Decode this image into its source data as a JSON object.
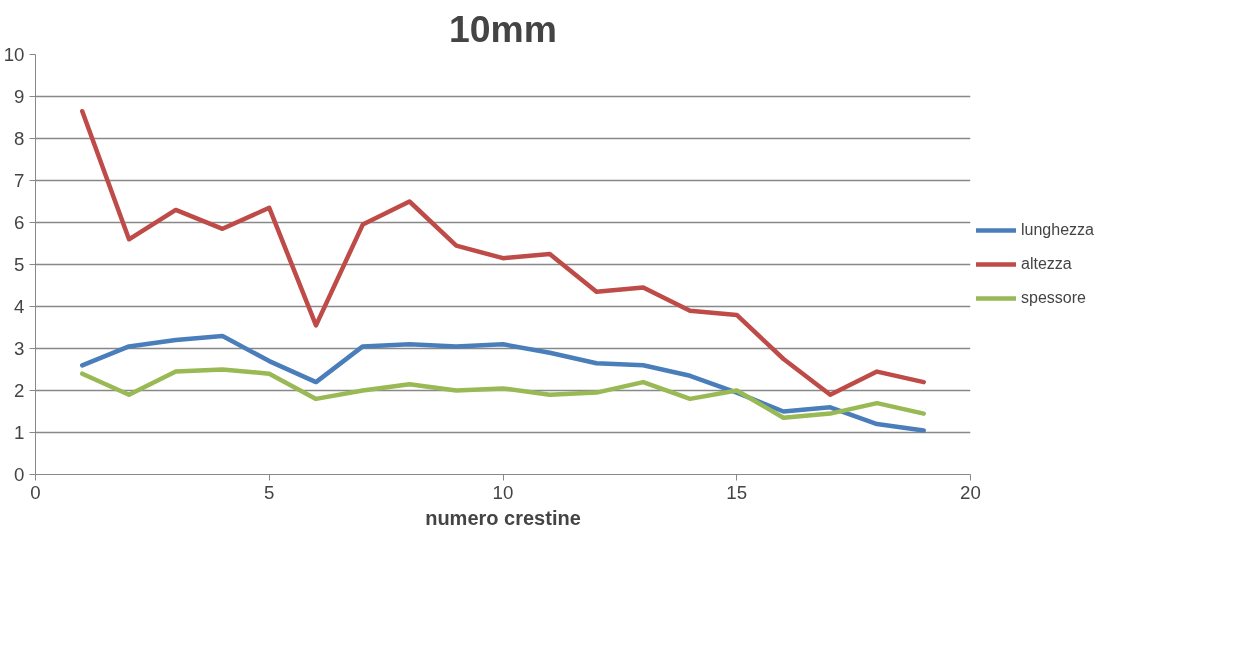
{
  "chart_data": {
    "type": "line",
    "title": "10mm",
    "xlabel": "numero crestine",
    "x": [
      1,
      2,
      3,
      4,
      5,
      6,
      7,
      8,
      9,
      10,
      11,
      12,
      13,
      14,
      15,
      16,
      17,
      18,
      19
    ],
    "series": [
      {
        "name": "lunghezza",
        "color": "#4a7ebb",
        "values": [
          2.6,
          3.05,
          3.2,
          3.3,
          2.7,
          2.2,
          3.05,
          3.1,
          3.05,
          3.1,
          2.9,
          2.65,
          2.6,
          2.35,
          1.95,
          1.5,
          1.6,
          1.2,
          1.05
        ]
      },
      {
        "name": "altezza",
        "color": "#be4b48",
        "values": [
          8.65,
          5.6,
          6.3,
          5.85,
          6.35,
          3.55,
          5.95,
          6.5,
          5.45,
          5.15,
          5.25,
          4.35,
          4.45,
          3.9,
          3.8,
          2.75,
          1.9,
          2.45,
          2.2
        ]
      },
      {
        "name": "spessore",
        "color": "#98b954",
        "values": [
          2.4,
          1.9,
          2.45,
          2.5,
          2.4,
          1.8,
          2.0,
          2.15,
          2.0,
          2.05,
          1.9,
          1.95,
          2.2,
          1.8,
          2.0,
          1.35,
          1.45,
          1.7,
          1.45
        ]
      }
    ],
    "xlim": [
      0,
      20
    ],
    "xticks": [
      0,
      5,
      10,
      15,
      20
    ],
    "ylim": [
      0,
      10
    ],
    "yticks": [
      0,
      1,
      2,
      3,
      4,
      5,
      6,
      7,
      8,
      9,
      10
    ],
    "grid": "y",
    "legend": "right",
    "marker": "none",
    "line_style": "solid"
  }
}
